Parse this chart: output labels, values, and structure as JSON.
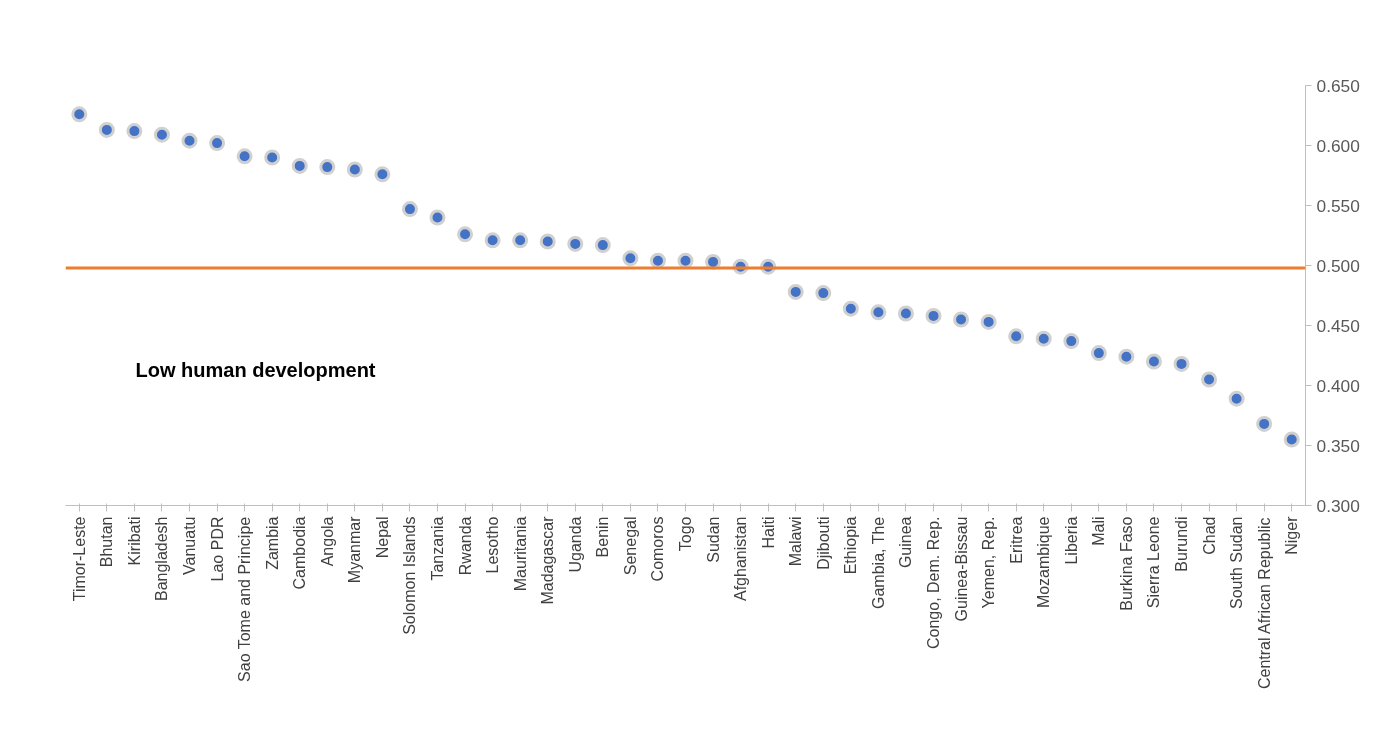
{
  "chart_data": {
    "type": "scatter",
    "categories": [
      "Timor-Leste",
      "Bhutan",
      "Kiribati",
      "Bangladesh",
      "Vanuatu",
      "Lao PDR",
      "Sao Tome and Principe",
      "Zambia",
      "Cambodia",
      "Angola",
      "Myanmar",
      "Nepal",
      "Solomon Islands",
      "Tanzania",
      "Rwanda",
      "Lesotho",
      "Mauritania",
      "Madagascar",
      "Uganda",
      "Benin",
      "Senegal",
      "Comoros",
      "Togo",
      "Sudan",
      "Afghanistan",
      "Haiti",
      "Malawi",
      "Djibouti",
      "Ethiopia",
      "Gambia, The",
      "Guinea",
      "Congo, Dem. Rep.",
      "Guinea-Bissau",
      "Yemen, Rep.",
      "Eritrea",
      "Mozambique",
      "Liberia",
      "Mali",
      "Burkina Faso",
      "Sierra Leone",
      "Burundi",
      "Chad",
      "South Sudan",
      "Central African Republic",
      "Niger"
    ],
    "series": [
      {
        "color": "#4472c4",
        "values": [
          0.626,
          0.613,
          0.612,
          0.609,
          0.604,
          0.602,
          0.591,
          0.59,
          0.583,
          0.582,
          0.58,
          0.576,
          0.547,
          0.54,
          0.526,
          0.521,
          0.521,
          0.52,
          0.518,
          0.517,
          0.506,
          0.504,
          0.504,
          0.503,
          0.499,
          0.499,
          0.478,
          0.477,
          0.464,
          0.461,
          0.46,
          0.458,
          0.455,
          0.453,
          0.441,
          0.439,
          0.437,
          0.427,
          0.424,
          0.42,
          0.418,
          0.405,
          0.389,
          0.368,
          0.355
        ]
      }
    ],
    "ylim": [
      0.3,
      0.65
    ],
    "yticks": [
      {
        "value": 0.3,
        "label": "0.300"
      },
      {
        "value": 0.35,
        "label": "0.350"
      },
      {
        "value": 0.4,
        "label": "0.400"
      },
      {
        "value": 0.45,
        "label": "0.450"
      },
      {
        "value": 0.5,
        "label": "0.500"
      },
      {
        "value": 0.55,
        "label": "0.550"
      },
      {
        "value": 0.6,
        "label": "0.600"
      },
      {
        "value": 0.65,
        "label": "0.650"
      }
    ],
    "ref_lines": [
      {
        "axis": "y",
        "value": 0.498,
        "color": "#ed7d31"
      }
    ],
    "annotations": [
      "Low human development"
    ],
    "marker": "circle",
    "grid": false
  }
}
